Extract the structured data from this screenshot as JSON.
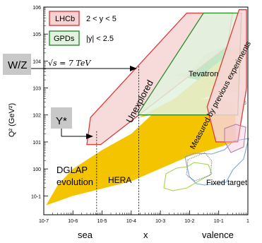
{
  "chart_data": {
    "type": "area",
    "xscale": "log",
    "yscale": "log",
    "xlim": [
      1e-07,
      1
    ],
    "ylim": [
      0.02,
      1000000.0
    ],
    "ylabel": "Q² (GeV²)",
    "x_tick_labels": [
      "10-7",
      "10-6",
      "10-5",
      "10-4",
      "10-3",
      "10-2",
      "10-1",
      "1"
    ],
    "y_tick_labels": [
      "10-1",
      "100",
      "101",
      "102",
      "103",
      "104",
      "105",
      "106"
    ],
    "x_region_labels": [
      "sea",
      "x",
      "valence"
    ],
    "legend": [
      {
        "label": "LHCb",
        "range": "2 < y < 5",
        "fill": "#f6d3d3",
        "stroke": "#e0393b"
      },
      {
        "label": "GPDs",
        "range": "|y| < 2.5",
        "fill": "#e2f2de",
        "stroke": "#2c8a2c"
      }
    ],
    "energy_label": "√s = 7 TeV",
    "callouts": [
      {
        "label": "W/Z",
        "value_q2": 6400
      },
      {
        "label": "Y*",
        "value_q2": 25
      }
    ],
    "x_markers": [
      6.5e-06,
      0.00018
    ],
    "annotations": [
      "Unexplored",
      "Measured by previous experiments",
      "Tevatron",
      "HERA",
      "DGLAP evolution",
      "Fixed target"
    ],
    "regions": [
      {
        "name": "HERA",
        "color": "#f5c400",
        "points": [
          [
            1.2e-07,
            0.045
          ],
          [
            1e-06,
            0.1
          ],
          [
            0.0001,
            0.35
          ],
          [
            0.01,
            3
          ],
          [
            0.4,
            10
          ],
          [
            0.35,
            300
          ],
          [
            0.04,
            400
          ],
          [
            0.001,
            200
          ],
          [
            0.0001,
            20
          ],
          [
            1e-05,
            5
          ],
          [
            1e-06,
            1
          ],
          [
            3e-07,
            0.25
          ]
        ]
      },
      {
        "name": "HERA high-Q2",
        "color": "#f5c400",
        "points": [
          [
            0.00018,
            80
          ],
          [
            0.003,
            400
          ],
          [
            0.04,
            4000
          ],
          [
            0.15,
            30000
          ],
          [
            0.6,
            30000
          ],
          [
            0.5,
            800
          ],
          [
            0.05,
            500
          ],
          [
            0.003,
            150
          ]
        ]
      },
      {
        "name": "Tevatron",
        "color": "#1aa63a",
        "points": [
          [
            0.003,
            3000
          ],
          [
            0.01,
            4000
          ],
          [
            0.04,
            20000
          ],
          [
            0.25,
            40000
          ],
          [
            0.25,
            18000
          ],
          [
            0.06,
            6000
          ],
          [
            0.02,
            2000
          ]
        ]
      },
      {
        "name": "LHCb",
        "color": "#f6d3d3",
        "stroke": "#e0393b",
        "points": [
          [
            3e-06,
            8
          ],
          [
            4e-06,
            80
          ],
          [
            0.008,
            600000
          ],
          [
            0.3,
            600000
          ],
          [
            0.2,
            35000
          ],
          [
            9e-06,
            8
          ]
        ]
      },
      {
        "name": "GPDs",
        "color": "#e2f2de",
        "stroke": "#2c8a2c",
        "points": [
          [
            0.00018,
            100
          ],
          [
            0.00018,
            120
          ],
          [
            0.03,
            600000
          ],
          [
            0.6,
            600000
          ],
          [
            0.45,
            100
          ]
        ]
      },
      {
        "name": "LHCb right",
        "color": "#f6d3d3",
        "stroke": "#e0393b",
        "points": [
          [
            0.08,
            10
          ],
          [
            0.04,
            200
          ],
          [
            0.5,
            800000
          ],
          [
            0.9,
            800000
          ],
          [
            0.9,
            1000
          ],
          [
            0.45,
            10
          ]
        ]
      }
    ],
    "grid": false
  }
}
